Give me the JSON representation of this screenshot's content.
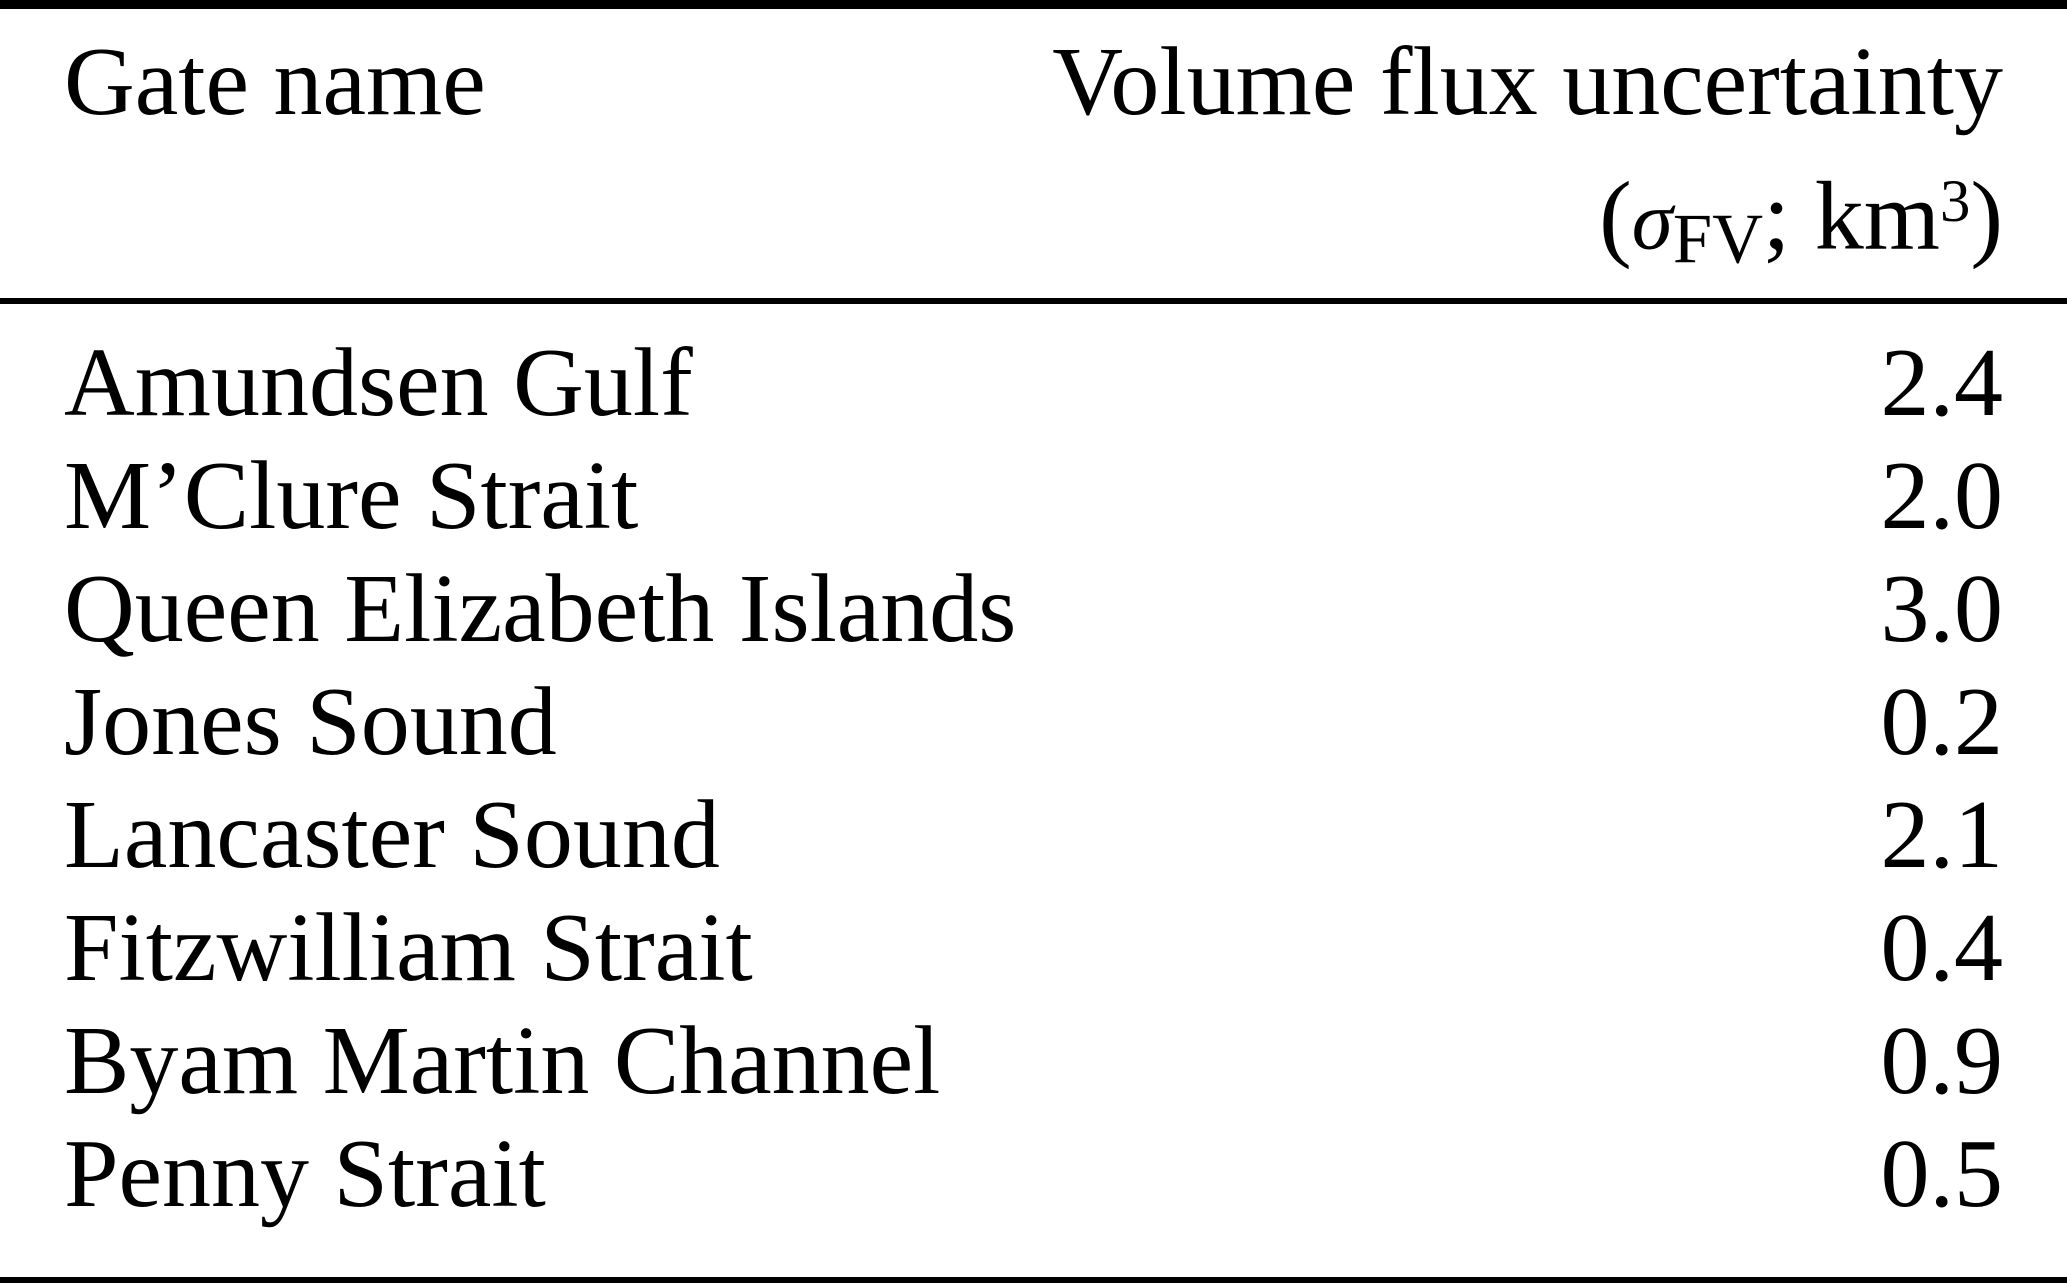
{
  "colors": {
    "background": "#ffffff",
    "text": "#000000",
    "rule": "#000000"
  },
  "table": {
    "header": {
      "col1": "Gate name",
      "col2_line1": "Volume flux uncertainty",
      "col2_units": {
        "open_paren": "(",
        "sigma": "σ",
        "subscript": "FV",
        "separator": "; ",
        "unit": "km",
        "exponent": "3",
        "close_paren": ")"
      }
    },
    "rows": [
      {
        "gate": "Amundsen Gulf",
        "value": "2.4"
      },
      {
        "gate": "M’Clure Strait",
        "value": "2.0"
      },
      {
        "gate": "Queen Elizabeth Islands",
        "value": "3.0"
      },
      {
        "gate": "Jones Sound",
        "value": "0.2"
      },
      {
        "gate": "Lancaster Sound",
        "value": "2.1"
      },
      {
        "gate": "Fitzwilliam Strait",
        "value": "0.4"
      },
      {
        "gate": "Byam Martin Channel",
        "value": "0.9"
      },
      {
        "gate": "Penny Strait",
        "value": "0.5"
      }
    ]
  },
  "chart_data": {
    "type": "table",
    "columns": [
      "Gate name",
      "Volume flux uncertainty (σFV; km³)"
    ],
    "rows": [
      [
        "Amundsen Gulf",
        2.4
      ],
      [
        "M’Clure Strait",
        2.0
      ],
      [
        "Queen Elizabeth Islands",
        3.0
      ],
      [
        "Jones Sound",
        0.2
      ],
      [
        "Lancaster Sound",
        2.1
      ],
      [
        "Fitzwilliam Strait",
        0.4
      ],
      [
        "Byam Martin Channel",
        0.9
      ],
      [
        "Penny Strait",
        0.5
      ]
    ]
  }
}
